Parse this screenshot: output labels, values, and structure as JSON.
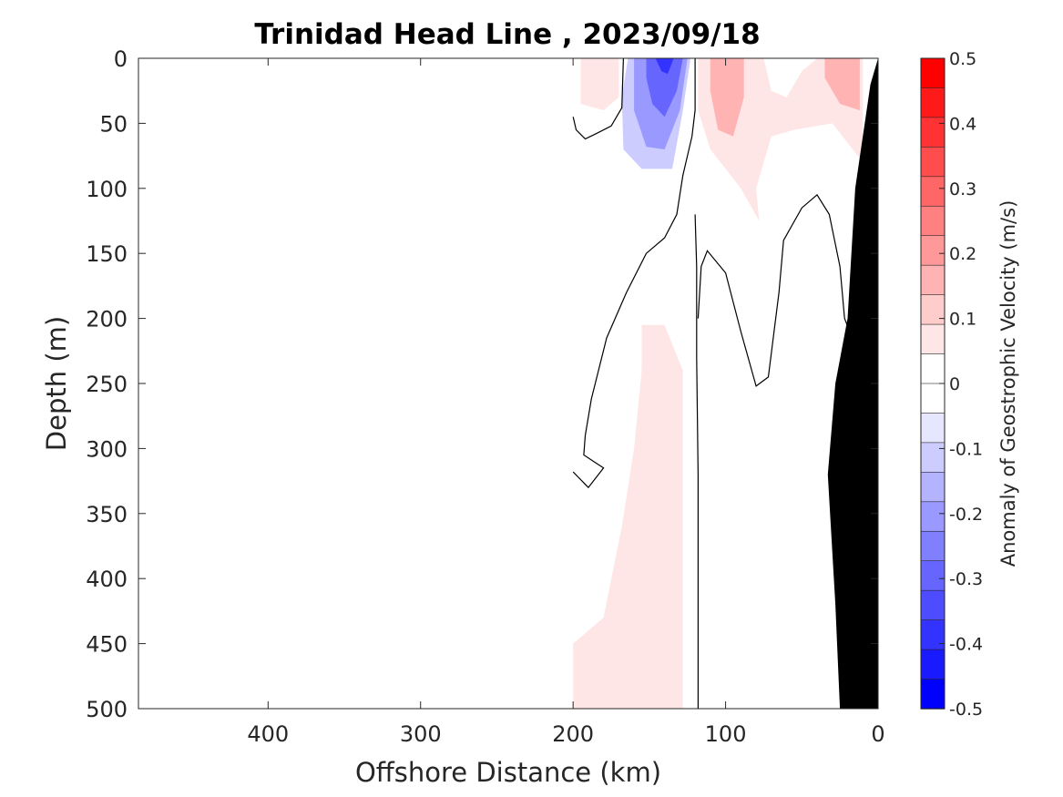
{
  "chart_data": {
    "type": "contour",
    "title": "Trinidad Head Line , 2023/09/18",
    "xlabel": "Offshore Distance (km)",
    "ylabel": "Depth (m)",
    "xlim": [
      485,
      0
    ],
    "ylim": [
      0,
      500
    ],
    "x_reversed": true,
    "y_reversed": true,
    "xticks": [
      400,
      300,
      200,
      100,
      0
    ],
    "yticks": [
      0,
      50,
      100,
      150,
      200,
      250,
      300,
      350,
      400,
      450,
      500
    ],
    "colorbar": {
      "label": "Anomaly of Geostrophic Velocity (m/s)",
      "range": [
        -0.5,
        0.5
      ],
      "step": 0.05,
      "ticks": [
        0.5,
        0.4,
        0.3,
        0.2,
        0.1,
        0,
        -0.1,
        -0.2,
        -0.3,
        -0.4,
        -0.5
      ],
      "colors": [
        "#ff0000",
        "#ff1a1a",
        "#ff3333",
        "#ff4d4d",
        "#ff6666",
        "#ff8080",
        "#ff9999",
        "#ffb3b3",
        "#ffcccc",
        "#ffe6e6",
        "#ffffff",
        "#ffffff",
        "#e6e6ff",
        "#ccccff",
        "#b3b3ff",
        "#9999ff",
        "#8080ff",
        "#6666ff",
        "#4d4dff",
        "#3333ff",
        "#1a1aff",
        "#0000ff"
      ]
    },
    "filled_regions": [
      {
        "sign": "negative",
        "level": -0.05,
        "polygon": [
          [
            167,
            0
          ],
          [
            120,
            0
          ],
          [
            122,
            60
          ],
          [
            130,
            100
          ],
          [
            140,
            140
          ],
          [
            160,
            185
          ],
          [
            175,
            230
          ],
          [
            188,
            290
          ],
          [
            198,
            330
          ],
          [
            198,
            300
          ],
          [
            190,
            240
          ],
          [
            178,
            190
          ],
          [
            160,
            140
          ],
          [
            148,
            110
          ],
          [
            162,
            80
          ]
        ]
      },
      {
        "sign": "negative",
        "level": -0.05,
        "polygon": [
          [
            165,
            0
          ],
          [
            121,
            0
          ],
          [
            130,
            30
          ],
          [
            140,
            80
          ],
          [
            138,
            120
          ],
          [
            150,
            110
          ],
          [
            170,
            95
          ],
          [
            178,
            140
          ],
          [
            185,
            200
          ],
          [
            192,
            230
          ],
          [
            200,
            200
          ],
          [
            198,
            120
          ],
          [
            185,
            80
          ],
          [
            168,
            60
          ]
        ]
      },
      {
        "sign": "negative",
        "level": -0.15,
        "polygon": [
          [
            164,
            0
          ],
          [
            123,
            0
          ],
          [
            128,
            40
          ],
          [
            135,
            85
          ],
          [
            155,
            85
          ],
          [
            167,
            70
          ],
          [
            168,
            30
          ]
        ]
      },
      {
        "sign": "negative",
        "level": -0.25,
        "polygon": [
          [
            160,
            0
          ],
          [
            125,
            0
          ],
          [
            130,
            40
          ],
          [
            140,
            70
          ],
          [
            152,
            68
          ],
          [
            160,
            40
          ]
        ]
      },
      {
        "sign": "negative",
        "level": -0.35,
        "polygon": [
          [
            152,
            0
          ],
          [
            128,
            0
          ],
          [
            132,
            25
          ],
          [
            140,
            45
          ],
          [
            148,
            35
          ],
          [
            152,
            15
          ]
        ]
      },
      {
        "sign": "negative",
        "level": -0.45,
        "polygon": [
          [
            146,
            0
          ],
          [
            134,
            0
          ],
          [
            138,
            12
          ],
          [
            142,
            10
          ]
        ]
      },
      {
        "sign": "positive",
        "level": 0.05,
        "polygon": [
          [
            195,
            0
          ],
          [
            170,
            0
          ],
          [
            170,
            30
          ],
          [
            180,
            40
          ],
          [
            195,
            35
          ]
        ]
      },
      {
        "sign": "positive",
        "level": 0.05,
        "polygon": [
          [
            118,
            0
          ],
          [
            75,
            0
          ],
          [
            70,
            25
          ],
          [
            60,
            30
          ],
          [
            50,
            10
          ],
          [
            40,
            0
          ],
          [
            10,
            0
          ],
          [
            10,
            80
          ],
          [
            30,
            50
          ],
          [
            55,
            55
          ],
          [
            70,
            60
          ],
          [
            80,
            100
          ],
          [
            78,
            125
          ],
          [
            90,
            100
          ],
          [
            110,
            70
          ],
          [
            118,
            40
          ]
        ]
      },
      {
        "sign": "positive",
        "level": 0.15,
        "polygon": [
          [
            110,
            0
          ],
          [
            88,
            0
          ],
          [
            88,
            30
          ],
          [
            95,
            60
          ],
          [
            105,
            55
          ],
          [
            110,
            25
          ]
        ]
      },
      {
        "sign": "positive",
        "level": 0.15,
        "polygon": [
          [
            35,
            0
          ],
          [
            12,
            0
          ],
          [
            12,
            40
          ],
          [
            25,
            35
          ],
          [
            35,
            15
          ]
        ]
      },
      {
        "sign": "positive",
        "level": 0.05,
        "polygon": [
          [
            155,
            205
          ],
          [
            140,
            205
          ],
          [
            128,
            240
          ],
          [
            128,
            500
          ],
          [
            200,
            500
          ],
          [
            200,
            450
          ],
          [
            180,
            430
          ],
          [
            168,
            360
          ],
          [
            160,
            300
          ],
          [
            155,
            240
          ]
        ]
      },
      {
        "sign": "positive",
        "level": 0.05,
        "polygon": [
          [
            145,
            485
          ],
          [
            135,
            485
          ],
          [
            135,
            500
          ],
          [
            145,
            500
          ]
        ]
      },
      {
        "sign": "negative",
        "level": -0.05,
        "polygon": [
          [
            100,
            310
          ],
          [
            90,
            360
          ],
          [
            70,
            420
          ],
          [
            66,
            500
          ],
          [
            110,
            500
          ],
          [
            110,
            420
          ],
          [
            105,
            350
          ]
        ]
      },
      {
        "sign": "negative",
        "level": -0.05,
        "polygon": [
          [
            28,
            350
          ],
          [
            24,
            500
          ],
          [
            18,
            500
          ],
          [
            25,
            400
          ]
        ]
      }
    ],
    "contour_lines": [
      [
        [
          200,
          45
        ],
        [
          198,
          55
        ],
        [
          192,
          62
        ],
        [
          185,
          58
        ],
        [
          175,
          52
        ],
        [
          168,
          38
        ],
        [
          167,
          0
        ]
      ],
      [
        [
          120,
          0
        ],
        [
          120,
          40
        ],
        [
          122,
          60
        ],
        [
          128,
          90
        ],
        [
          132,
          120
        ],
        [
          140,
          138
        ],
        [
          152,
          150
        ],
        [
          165,
          180
        ],
        [
          178,
          215
        ],
        [
          188,
          262
        ],
        [
          192,
          290
        ],
        [
          193,
          305
        ],
        [
          180,
          315
        ],
        [
          190,
          330
        ],
        [
          200,
          318
        ]
      ],
      [
        [
          118,
          500
        ],
        [
          118,
          440
        ],
        [
          118,
          380
        ],
        [
          118,
          320
        ],
        [
          119,
          230
        ],
        [
          119,
          160
        ],
        [
          120,
          120
        ]
      ],
      [
        [
          118,
          200
        ],
        [
          116,
          160
        ],
        [
          112,
          148
        ],
        [
          100,
          165
        ],
        [
          90,
          210
        ],
        [
          80,
          252
        ],
        [
          72,
          245
        ],
        [
          65,
          180
        ],
        [
          62,
          140
        ],
        [
          50,
          115
        ],
        [
          40,
          105
        ],
        [
          32,
          120
        ],
        [
          25,
          160
        ],
        [
          22,
          200
        ],
        [
          18,
          212
        ],
        [
          16,
          195
        ]
      ]
    ],
    "bathymetry": {
      "color": "#000000",
      "polygon": [
        [
          0,
          0
        ],
        [
          0,
          500
        ],
        [
          25,
          500
        ],
        [
          28,
          420
        ],
        [
          33,
          320
        ],
        [
          28,
          250
        ],
        [
          20,
          200
        ],
        [
          15,
          100
        ],
        [
          5,
          20
        ]
      ]
    }
  }
}
